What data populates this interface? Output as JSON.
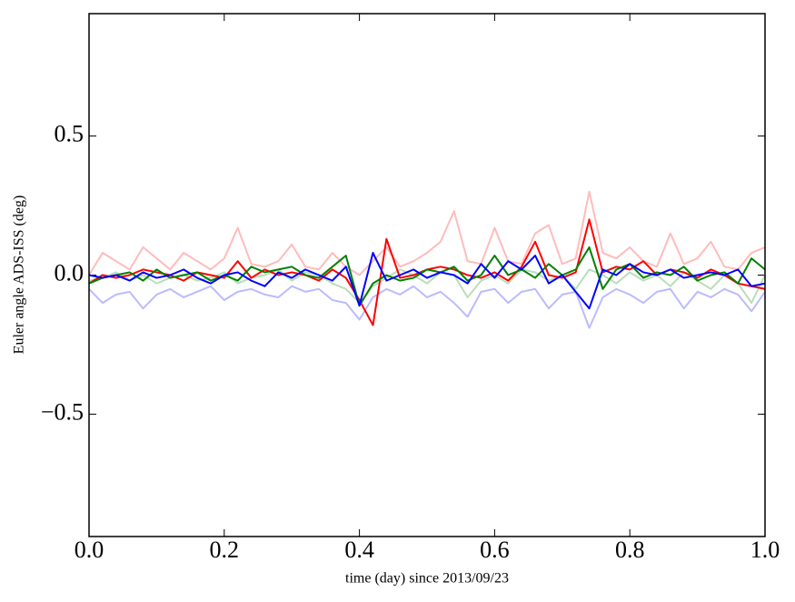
{
  "chart_data": {
    "type": "line",
    "xlabel": "time (day) since 2013/09/23",
    "ylabel": "Euler angle ADS-ISS (deg)",
    "x": [
      0.0,
      0.02,
      0.04,
      0.06,
      0.08,
      0.1,
      0.12,
      0.14,
      0.16,
      0.18,
      0.2,
      0.22,
      0.24,
      0.26,
      0.28,
      0.3,
      0.32,
      0.34,
      0.36,
      0.38,
      0.4,
      0.42,
      0.44,
      0.46,
      0.48,
      0.5,
      0.52,
      0.54,
      0.56,
      0.58,
      0.6,
      0.62,
      0.64,
      0.66,
      0.68,
      0.7,
      0.72,
      0.74,
      0.76,
      0.78,
      0.8,
      0.82,
      0.84,
      0.86,
      0.88,
      0.9,
      0.92,
      0.94,
      0.96,
      0.98,
      1.0
    ],
    "series": [
      {
        "color": "#ffbbbb",
        "values": [
          0.0,
          0.08,
          0.05,
          0.02,
          0.1,
          0.06,
          0.02,
          0.08,
          0.05,
          0.02,
          0.06,
          0.17,
          0.04,
          0.03,
          0.05,
          0.11,
          0.03,
          0.02,
          0.08,
          0.03,
          0.0,
          0.05,
          0.1,
          0.03,
          0.05,
          0.08,
          0.12,
          0.23,
          0.05,
          0.04,
          0.17,
          0.05,
          0.04,
          0.15,
          0.18,
          0.04,
          0.06,
          0.3,
          0.08,
          0.06,
          0.1,
          0.05,
          0.03,
          0.15,
          0.04,
          0.06,
          0.12,
          0.03,
          0.02,
          0.08,
          0.1
        ]
      },
      {
        "color": "#bbddbb",
        "values": [
          -0.02,
          -0.01,
          0.01,
          -0.02,
          0.0,
          -0.03,
          -0.01,
          0.0,
          -0.02,
          -0.01,
          0.01,
          -0.03,
          -0.01,
          0.0,
          0.02,
          -0.02,
          0.01,
          0.0,
          -0.03,
          -0.05,
          -0.1,
          -0.04,
          -0.01,
          0.02,
          0.0,
          -0.03,
          0.01,
          0.0,
          -0.08,
          -0.02,
          0.0,
          -0.03,
          0.02,
          0.01,
          -0.02,
          0.0,
          -0.05,
          0.02,
          0.0,
          -0.03,
          0.01,
          -0.02,
          0.0,
          -0.04,
          0.01,
          -0.02,
          -0.05,
          0.0,
          -0.03,
          -0.1,
          0.0
        ]
      },
      {
        "color": "#bbbbff",
        "values": [
          -0.05,
          -0.1,
          -0.07,
          -0.06,
          -0.12,
          -0.07,
          -0.05,
          -0.08,
          -0.06,
          -0.04,
          -0.09,
          -0.06,
          -0.05,
          -0.07,
          -0.08,
          -0.04,
          -0.06,
          -0.05,
          -0.09,
          -0.1,
          -0.16,
          -0.08,
          -0.05,
          -0.07,
          -0.04,
          -0.08,
          -0.06,
          -0.1,
          -0.15,
          -0.06,
          -0.05,
          -0.1,
          -0.06,
          -0.05,
          -0.12,
          -0.07,
          -0.06,
          -0.19,
          -0.08,
          -0.05,
          -0.07,
          -0.1,
          -0.06,
          -0.05,
          -0.12,
          -0.06,
          -0.08,
          -0.05,
          -0.07,
          -0.13,
          -0.06
        ]
      },
      {
        "color": "#ff0000",
        "values": [
          -0.03,
          0.0,
          -0.01,
          0.0,
          0.02,
          0.01,
          0.0,
          -0.02,
          0.01,
          0.0,
          -0.01,
          0.05,
          -0.01,
          0.02,
          0.0,
          0.01,
          0.0,
          -0.02,
          0.02,
          -0.01,
          -0.09,
          -0.18,
          0.13,
          -0.01,
          0.0,
          0.02,
          0.03,
          0.02,
          0.0,
          -0.01,
          0.01,
          -0.02,
          0.03,
          0.12,
          0.0,
          -0.01,
          0.01,
          0.2,
          0.01,
          0.03,
          0.02,
          0.05,
          0.0,
          0.02,
          0.01,
          -0.01,
          0.02,
          0.0,
          -0.03,
          -0.04,
          -0.05
        ]
      },
      {
        "color": "#008000",
        "values": [
          -0.03,
          -0.01,
          0.0,
          0.01,
          -0.02,
          0.02,
          -0.01,
          0.0,
          0.01,
          -0.02,
          0.0,
          -0.02,
          0.03,
          0.01,
          0.02,
          0.03,
          0.0,
          -0.01,
          0.03,
          0.07,
          -0.11,
          -0.03,
          0.0,
          -0.02,
          -0.01,
          0.02,
          0.01,
          0.03,
          -0.02,
          0.0,
          0.07,
          0.0,
          0.02,
          -0.01,
          0.04,
          0.0,
          0.02,
          0.1,
          -0.05,
          0.02,
          0.04,
          -0.01,
          0.01,
          0.0,
          0.03,
          -0.02,
          0.0,
          0.01,
          -0.03,
          0.06,
          0.02
        ]
      },
      {
        "color": "#0000ff",
        "values": [
          0.0,
          -0.01,
          0.0,
          -0.02,
          0.01,
          -0.01,
          0.0,
          0.02,
          -0.01,
          -0.03,
          0.0,
          0.01,
          -0.02,
          -0.04,
          0.01,
          -0.01,
          0.02,
          0.0,
          -0.02,
          0.03,
          -0.11,
          0.08,
          -0.02,
          0.0,
          0.02,
          -0.01,
          0.01,
          0.0,
          -0.03,
          0.04,
          -0.01,
          0.05,
          0.02,
          0.07,
          -0.03,
          0.0,
          -0.06,
          -0.12,
          0.02,
          0.0,
          0.04,
          0.01,
          0.0,
          0.02,
          -0.01,
          0.0,
          0.01,
          0.0,
          0.02,
          -0.04,
          -0.03
        ]
      }
    ],
    "xlim": [
      0.0,
      1.0
    ],
    "xticks": [
      {
        "value": 0.0,
        "label": "0.0"
      },
      0.2,
      0.4,
      0.6,
      0.8,
      {
        "value": 1.0,
        "label": "1.0"
      }
    ],
    "ylim": [
      -0.94,
      0.94
    ],
    "yticks": [
      {
        "value": -0.5,
        "label": "−0.5"
      },
      {
        "value": 0.0,
        "label": "0.0"
      },
      0.5
    ]
  }
}
